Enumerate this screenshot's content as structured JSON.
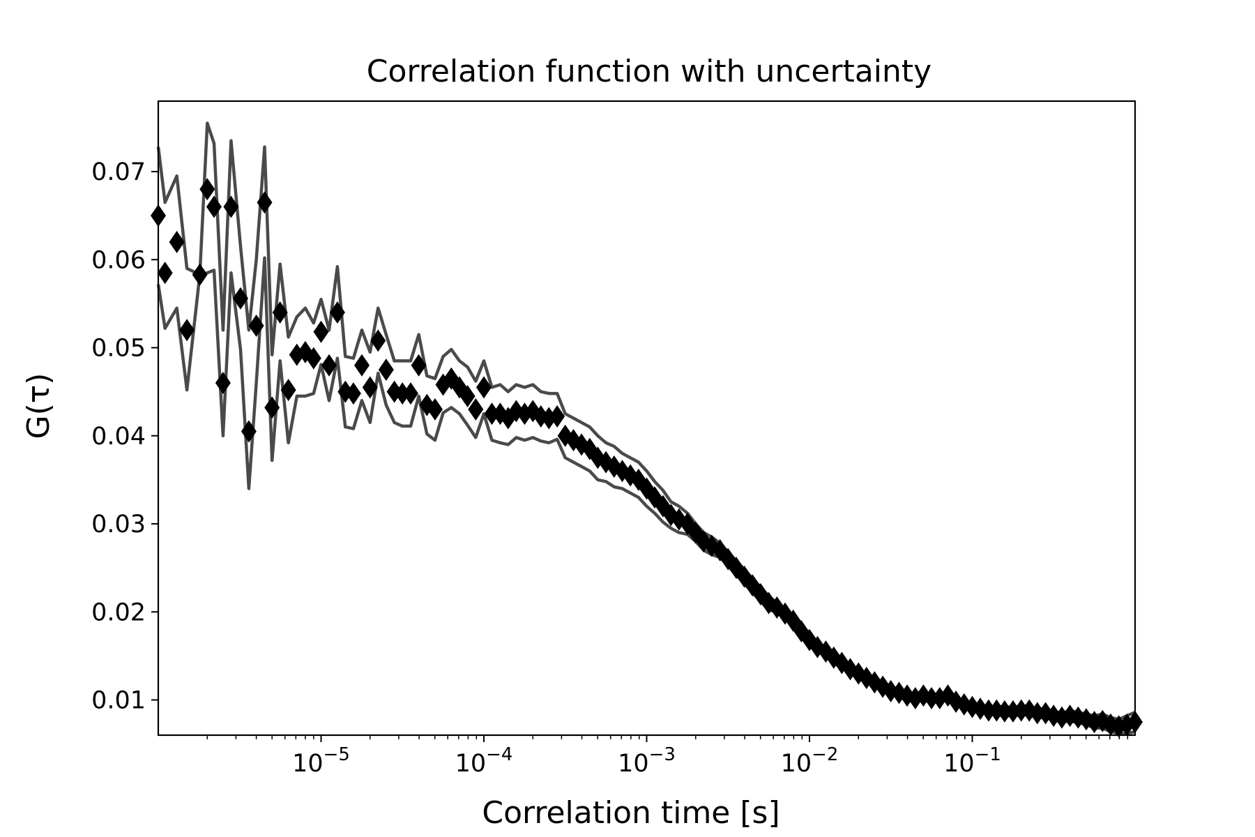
{
  "chart_data": {
    "type": "scatter",
    "title": "Correlation function with uncertainty",
    "xlabel": "Correlation time [s]",
    "ylabel": "G(τ)",
    "x_scale": "log",
    "xlim": [
      1e-06,
      1.0
    ],
    "ylim": [
      0.006,
      0.078
    ],
    "x_ticks": [
      {
        "value": 1e-05,
        "base": "10",
        "exp": "−5"
      },
      {
        "value": 0.0001,
        "base": "10",
        "exp": "−4"
      },
      {
        "value": 0.001,
        "base": "10",
        "exp": "−3"
      },
      {
        "value": 0.01,
        "base": "10",
        "exp": "−2"
      },
      {
        "value": 0.1,
        "base": "10",
        "exp": "−1"
      }
    ],
    "y_ticks": [
      {
        "value": 0.01,
        "label": "0.01"
      },
      {
        "value": 0.02,
        "label": "0.02"
      },
      {
        "value": 0.03,
        "label": "0.03"
      },
      {
        "value": 0.04,
        "label": "0.04"
      },
      {
        "value": 0.05,
        "label": "0.05"
      },
      {
        "value": 0.06,
        "label": "0.06"
      },
      {
        "value": 0.07,
        "label": "0.07"
      }
    ],
    "grid": false,
    "marker": "diamond",
    "marker_color": "#000000",
    "band_color": "#4a4a4a",
    "series": [
      {
        "x": [
          1e-06,
          1.1e-06,
          1.3e-06,
          1.5e-06,
          1.8e-06,
          2e-06,
          2.2e-06,
          2.5e-06,
          2.8e-06,
          3.2e-06,
          3.6e-06,
          4e-06,
          4.5e-06,
          5e-06,
          5.6e-06,
          6.3e-06,
          7.1e-06,
          8e-06,
          9e-06,
          1e-05,
          1.12e-05,
          1.26e-05,
          1.41e-05,
          1.58e-05,
          1.78e-05,
          2e-05,
          2.24e-05,
          2.51e-05,
          2.82e-05,
          3.16e-05,
          3.55e-05,
          3.98e-05,
          4.47e-05,
          5.01e-05,
          5.62e-05,
          6.31e-05,
          7.08e-05,
          7.94e-05,
          8.91e-05,
          0.0001,
          0.000112,
          0.000126,
          0.000141,
          0.000158,
          0.000178,
          0.0002,
          0.000224,
          0.000251,
          0.000282,
          0.000316,
          0.000355,
          0.000398,
          0.000447,
          0.000501,
          0.000562,
          0.000631,
          0.000708,
          0.000794,
          0.000891,
          0.001,
          0.00112,
          0.00126,
          0.00141,
          0.00158,
          0.00178,
          0.002,
          0.00224,
          0.00251,
          0.00282,
          0.00316,
          0.00355,
          0.00398,
          0.00447,
          0.00501,
          0.00562,
          0.00631,
          0.00708,
          0.00794,
          0.00891,
          0.01,
          0.0112,
          0.0126,
          0.0141,
          0.0158,
          0.0178,
          0.02,
          0.0224,
          0.0251,
          0.0282,
          0.0316,
          0.0355,
          0.0398,
          0.0447,
          0.0501,
          0.0562,
          0.0631,
          0.0708,
          0.0794,
          0.0891,
          0.1,
          0.112,
          0.126,
          0.141,
          0.158,
          0.178,
          0.2,
          0.224,
          0.251,
          0.282,
          0.316,
          0.355,
          0.398,
          0.447,
          0.501,
          0.562,
          0.631,
          0.708,
          0.794,
          0.891,
          1.0
        ],
        "y": [
          0.065,
          0.0585,
          0.062,
          0.052,
          0.0583,
          0.068,
          0.066,
          0.046,
          0.066,
          0.0556,
          0.0405,
          0.0525,
          0.0665,
          0.0432,
          0.054,
          0.0452,
          0.0492,
          0.0495,
          0.0488,
          0.0518,
          0.048,
          0.054,
          0.045,
          0.0448,
          0.048,
          0.0455,
          0.0508,
          0.0475,
          0.045,
          0.0448,
          0.0448,
          0.048,
          0.0435,
          0.043,
          0.0458,
          0.0465,
          0.0455,
          0.0445,
          0.043,
          0.0455,
          0.0425,
          0.0425,
          0.042,
          0.0428,
          0.0425,
          0.0428,
          0.0422,
          0.042,
          0.0422,
          0.04,
          0.0395,
          0.039,
          0.0385,
          0.0375,
          0.037,
          0.0365,
          0.036,
          0.0355,
          0.035,
          0.034,
          0.033,
          0.032,
          0.031,
          0.0305,
          0.03,
          0.029,
          0.028,
          0.0275,
          0.027,
          0.026,
          0.025,
          0.024,
          0.023,
          0.022,
          0.021,
          0.0205,
          0.0198,
          0.019,
          0.0178,
          0.0168,
          0.016,
          0.0155,
          0.0148,
          0.0142,
          0.0135,
          0.013,
          0.0125,
          0.012,
          0.0115,
          0.011,
          0.0108,
          0.0105,
          0.0102,
          0.0105,
          0.0102,
          0.0102,
          0.0105,
          0.0098,
          0.0095,
          0.0092,
          0.009,
          0.0088,
          0.0088,
          0.0087,
          0.0087,
          0.0088,
          0.0088,
          0.0085,
          0.0085,
          0.0082,
          0.008,
          0.0082,
          0.008,
          0.0078,
          0.0075,
          0.0076,
          0.0072,
          0.007,
          0.0072,
          0.0075
        ],
        "upper": [
          0.0728,
          0.0665,
          0.0695,
          0.059,
          0.0583,
          0.0755,
          0.0732,
          0.052,
          0.0735,
          0.0615,
          0.052,
          0.06,
          0.0728,
          0.0492,
          0.0595,
          0.0512,
          0.0535,
          0.0545,
          0.0528,
          0.0555,
          0.052,
          0.0592,
          0.049,
          0.0488,
          0.052,
          0.0495,
          0.0545,
          0.0515,
          0.0485,
          0.0485,
          0.0485,
          0.0515,
          0.0468,
          0.0465,
          0.049,
          0.0498,
          0.0485,
          0.0478,
          0.0462,
          0.0485,
          0.0455,
          0.0458,
          0.045,
          0.0458,
          0.0455,
          0.0458,
          0.045,
          0.0448,
          0.0448,
          0.0425,
          0.042,
          0.0415,
          0.041,
          0.04,
          0.0392,
          0.0388,
          0.038,
          0.0375,
          0.037,
          0.036,
          0.0348,
          0.0338,
          0.0325,
          0.032,
          0.0312,
          0.03,
          0.029,
          0.0285,
          0.0278,
          0.0268,
          0.0258,
          0.0248,
          0.0238,
          0.0228,
          0.0218,
          0.021,
          0.0203,
          0.0195,
          0.0183,
          0.0172,
          0.0165,
          0.0158,
          0.0152,
          0.0146,
          0.0139,
          0.0134,
          0.0129,
          0.0124,
          0.0119,
          0.0114,
          0.0112,
          0.0109,
          0.0106,
          0.0109,
          0.0106,
          0.0106,
          0.0109,
          0.0102,
          0.0099,
          0.0096,
          0.0094,
          0.0092,
          0.0093,
          0.0092,
          0.0092,
          0.0093,
          0.0093,
          0.009,
          0.009,
          0.0087,
          0.0085,
          0.0088,
          0.0086,
          0.0084,
          0.0082,
          0.0084,
          0.008,
          0.0078,
          0.0082,
          0.0086
        ],
        "lower": [
          0.0572,
          0.0522,
          0.0545,
          0.0452,
          0.0583,
          0.0585,
          0.0588,
          0.04,
          0.0585,
          0.0498,
          0.034,
          0.046,
          0.0602,
          0.0372,
          0.0485,
          0.0392,
          0.0445,
          0.0445,
          0.0448,
          0.0481,
          0.044,
          0.0488,
          0.041,
          0.0408,
          0.044,
          0.0415,
          0.0471,
          0.0435,
          0.0415,
          0.0411,
          0.0411,
          0.0445,
          0.0402,
          0.0395,
          0.0426,
          0.0432,
          0.0425,
          0.0412,
          0.0398,
          0.0425,
          0.0395,
          0.0392,
          0.039,
          0.0398,
          0.0395,
          0.0398,
          0.0394,
          0.0392,
          0.0396,
          0.0375,
          0.037,
          0.0365,
          0.036,
          0.035,
          0.0348,
          0.0342,
          0.034,
          0.0335,
          0.033,
          0.032,
          0.0312,
          0.0302,
          0.0295,
          0.029,
          0.0288,
          0.028,
          0.027,
          0.0265,
          0.0262,
          0.0252,
          0.0242,
          0.0232,
          0.0222,
          0.0212,
          0.0202,
          0.02,
          0.0193,
          0.0185,
          0.0173,
          0.0164,
          0.0155,
          0.0152,
          0.0144,
          0.0138,
          0.0131,
          0.0126,
          0.0121,
          0.0116,
          0.0111,
          0.0106,
          0.0104,
          0.0101,
          0.0098,
          0.0101,
          0.0098,
          0.0098,
          0.0101,
          0.0094,
          0.0091,
          0.0088,
          0.0086,
          0.0084,
          0.0083,
          0.0082,
          0.0082,
          0.0083,
          0.0083,
          0.008,
          0.008,
          0.0077,
          0.0075,
          0.0076,
          0.0074,
          0.0072,
          0.0068,
          0.0068,
          0.0064,
          0.0062,
          0.0062,
          0.0064
        ]
      }
    ]
  }
}
